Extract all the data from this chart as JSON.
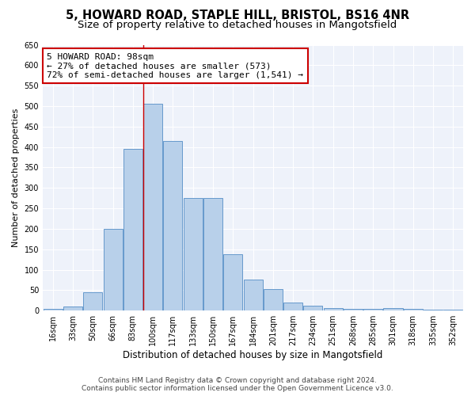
{
  "title1": "5, HOWARD ROAD, STAPLE HILL, BRISTOL, BS16 4NR",
  "title2": "Size of property relative to detached houses in Mangotsfield",
  "xlabel": "Distribution of detached houses by size in Mangotsfield",
  "ylabel": "Number of detached properties",
  "categories": [
    "16sqm",
    "33sqm",
    "50sqm",
    "66sqm",
    "83sqm",
    "100sqm",
    "117sqm",
    "133sqm",
    "150sqm",
    "167sqm",
    "184sqm",
    "201sqm",
    "217sqm",
    "234sqm",
    "251sqm",
    "268sqm",
    "285sqm",
    "301sqm",
    "318sqm",
    "335sqm",
    "352sqm"
  ],
  "values": [
    5,
    10,
    45,
    200,
    395,
    505,
    415,
    275,
    275,
    138,
    75,
    52,
    20,
    12,
    7,
    5,
    5,
    7,
    5,
    3,
    3
  ],
  "bar_color": "#b8d0ea",
  "bar_edge_color": "#6699cc",
  "red_line_bar_index": 5,
  "annotation_line1": "5 HOWARD ROAD: 98sqm",
  "annotation_line2": "← 27% of detached houses are smaller (573)",
  "annotation_line3": "72% of semi-detached houses are larger (1,541) →",
  "annotation_box_color": "#ffffff",
  "annotation_box_edge": "#cc0000",
  "ylim": [
    0,
    650
  ],
  "yticks": [
    0,
    50,
    100,
    150,
    200,
    250,
    300,
    350,
    400,
    450,
    500,
    550,
    600,
    650
  ],
  "background_color": "#eef2fa",
  "footer_line1": "Contains HM Land Registry data © Crown copyright and database right 2024.",
  "footer_line2": "Contains public sector information licensed under the Open Government Licence v3.0.",
  "title1_fontsize": 10.5,
  "title2_fontsize": 9.5,
  "xlabel_fontsize": 8.5,
  "ylabel_fontsize": 8,
  "tick_fontsize": 7,
  "annotation_fontsize": 8,
  "footer_fontsize": 6.5
}
